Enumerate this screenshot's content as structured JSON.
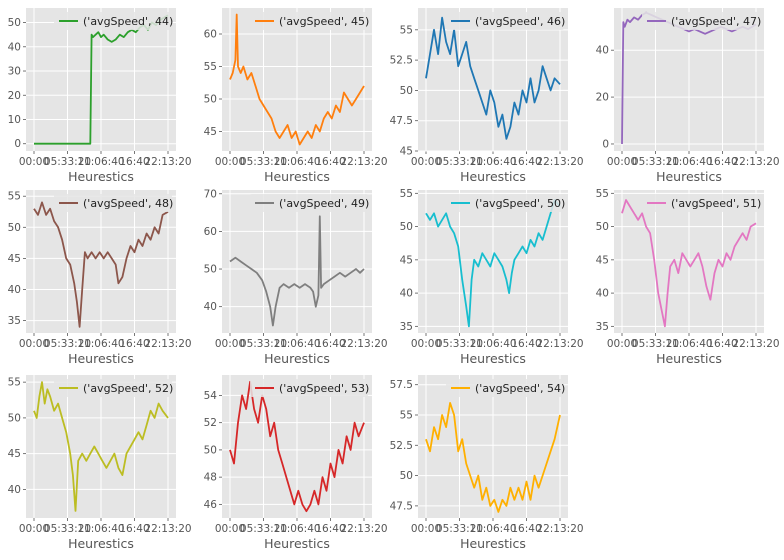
{
  "figure": {
    "grid": true,
    "background": "#e5e5e5",
    "grid_color": "#ffffff",
    "tick_color": "#555555"
  },
  "chart_data": [
    {
      "type": "line",
      "series": [
        {
          "name": "('avgSpeed', 44)"
        }
      ],
      "color": "#2ca02c",
      "xlabel": "Heurestics",
      "legend": "top-right",
      "xticks": [
        "00:00",
        "05:33:20",
        "11:06:40",
        "16:40",
        "22:13:20"
      ],
      "yticks": [
        0,
        10,
        20,
        30,
        40,
        50
      ],
      "ylim": [
        -3,
        56
      ],
      "x": [
        0.0,
        0.08,
        0.16,
        0.24,
        0.32,
        0.4,
        0.42,
        0.43,
        0.44,
        0.46,
        0.48,
        0.5,
        0.52,
        0.55,
        0.58,
        0.61,
        0.64,
        0.67,
        0.7,
        0.73,
        0.76,
        0.79,
        0.82,
        0.85,
        0.88,
        0.91,
        0.94,
        0.97,
        1.0
      ],
      "values": [
        0,
        0,
        0,
        0,
        0,
        0,
        0,
        45,
        44,
        45,
        46,
        44,
        45,
        43,
        42,
        43,
        45,
        44,
        46,
        47,
        46,
        48,
        49,
        47,
        50,
        49,
        51,
        52,
        53
      ]
    },
    {
      "type": "line",
      "series": [
        {
          "name": "('avgSpeed', 45)"
        }
      ],
      "color": "#ff7f0e",
      "xlabel": "Heurestics",
      "legend": "top-right",
      "xticks": [
        "00:00",
        "05:33:20",
        "11:06:40",
        "16:40",
        "22:13:20"
      ],
      "yticks": [
        45,
        50,
        55,
        60
      ],
      "ylim": [
        42,
        64
      ],
      "x": [
        0.0,
        0.02,
        0.04,
        0.05,
        0.06,
        0.08,
        0.1,
        0.13,
        0.16,
        0.19,
        0.22,
        0.25,
        0.28,
        0.31,
        0.34,
        0.37,
        0.4,
        0.43,
        0.46,
        0.49,
        0.52,
        0.55,
        0.58,
        0.61,
        0.64,
        0.67,
        0.7,
        0.73,
        0.76,
        0.79,
        0.82,
        0.85,
        0.88,
        0.91,
        0.94,
        0.97,
        1.0
      ],
      "values": [
        53,
        54,
        56,
        63,
        55,
        54,
        55,
        53,
        54,
        52,
        50,
        49,
        48,
        47,
        45,
        44,
        45,
        46,
        44,
        45,
        43,
        44,
        45,
        44,
        46,
        45,
        47,
        48,
        47,
        49,
        48,
        51,
        50,
        49,
        50,
        51,
        52
      ]
    },
    {
      "type": "line",
      "series": [
        {
          "name": "('avgSpeed', 46)"
        }
      ],
      "color": "#1f77b4",
      "xlabel": "Heurestics",
      "legend": "top-right",
      "xticks": [
        "00:00",
        "05:33:20",
        "11:06:40",
        "16:40",
        "22:13:20"
      ],
      "yticks": [
        45.0,
        47.5,
        50.0,
        52.5,
        55.0
      ],
      "ylim": [
        45,
        56.8
      ],
      "x": [
        0.0,
        0.03,
        0.06,
        0.09,
        0.12,
        0.15,
        0.18,
        0.21,
        0.24,
        0.27,
        0.3,
        0.33,
        0.36,
        0.39,
        0.42,
        0.45,
        0.48,
        0.51,
        0.54,
        0.57,
        0.6,
        0.63,
        0.66,
        0.69,
        0.72,
        0.75,
        0.78,
        0.81,
        0.84,
        0.87,
        0.9,
        0.93,
        0.96,
        1.0
      ],
      "values": [
        51,
        53,
        55,
        53,
        56,
        54,
        53,
        55,
        52,
        53,
        54,
        52,
        51,
        50,
        49,
        48,
        50,
        49,
        47,
        48,
        46,
        47,
        49,
        48,
        50,
        49,
        51,
        49,
        50,
        52,
        51,
        50,
        51,
        50.5
      ]
    },
    {
      "type": "line",
      "series": [
        {
          "name": "('avgSpeed', 47)"
        }
      ],
      "color": "#9467bd",
      "xlabel": "Heurestics",
      "legend": "top-right",
      "xticks": [
        "00:00",
        "05:33:20",
        "11:06:40",
        "16:40",
        "22:13:20"
      ],
      "yticks": [
        0,
        20,
        40
      ],
      "ylim": [
        -3,
        58
      ],
      "x": [
        0.0,
        0.01,
        0.02,
        0.04,
        0.06,
        0.09,
        0.12,
        0.15,
        0.18,
        0.22,
        0.26,
        0.3,
        0.34,
        0.38,
        0.42,
        0.46,
        0.5,
        0.54,
        0.58,
        0.62,
        0.66,
        0.7,
        0.74,
        0.78,
        0.82,
        0.86,
        0.9,
        0.94,
        0.97,
        1.0
      ],
      "values": [
        0,
        52,
        50,
        53,
        52,
        54,
        53,
        55,
        56,
        55,
        54,
        53,
        52,
        51,
        50,
        49,
        48,
        49,
        48,
        47,
        48,
        49,
        50,
        49,
        48,
        49,
        50,
        49,
        50,
        51
      ]
    },
    {
      "type": "line",
      "series": [
        {
          "name": "('avgSpeed', 48)"
        }
      ],
      "color": "#8c564b",
      "xlabel": "Heurestics",
      "legend": "top-right",
      "xticks": [
        "00:00",
        "05:33:20",
        "11:06:40",
        "16:40",
        "22:13:20"
      ],
      "yticks": [
        35,
        40,
        45,
        50,
        55
      ],
      "ylim": [
        33,
        56
      ],
      "x": [
        0.0,
        0.03,
        0.06,
        0.09,
        0.12,
        0.15,
        0.18,
        0.21,
        0.24,
        0.27,
        0.3,
        0.32,
        0.34,
        0.36,
        0.38,
        0.4,
        0.43,
        0.46,
        0.49,
        0.52,
        0.55,
        0.58,
        0.61,
        0.63,
        0.66,
        0.69,
        0.72,
        0.75,
        0.78,
        0.81,
        0.84,
        0.87,
        0.9,
        0.93,
        0.96,
        1.0
      ],
      "values": [
        53,
        52,
        54,
        52,
        53,
        51,
        50,
        48,
        45,
        44,
        41,
        38,
        34,
        40,
        46,
        45,
        46,
        45,
        46,
        45,
        46,
        45,
        44,
        41,
        42,
        45,
        47,
        46,
        48,
        47,
        49,
        48,
        50,
        49,
        52,
        52.5
      ]
    },
    {
      "type": "line",
      "series": [
        {
          "name": "('avgSpeed', 49)"
        }
      ],
      "color": "#7f7f7f",
      "xlabel": "Heurestics",
      "legend": "top-right",
      "xticks": [
        "00:00",
        "05:33:20",
        "11:06:40",
        "16:40",
        "22:13:20"
      ],
      "yticks": [
        40,
        50,
        60,
        70
      ],
      "ylim": [
        33,
        71
      ],
      "x": [
        0.0,
        0.04,
        0.08,
        0.12,
        0.16,
        0.2,
        0.24,
        0.27,
        0.3,
        0.32,
        0.34,
        0.37,
        0.4,
        0.44,
        0.48,
        0.52,
        0.56,
        0.6,
        0.62,
        0.64,
        0.66,
        0.67,
        0.68,
        0.7,
        0.74,
        0.78,
        0.82,
        0.86,
        0.9,
        0.94,
        0.97,
        1.0
      ],
      "values": [
        52,
        53,
        52,
        51,
        50,
        49,
        47,
        44,
        40,
        35,
        40,
        45,
        46,
        45,
        46,
        45,
        46,
        45,
        44,
        40,
        43,
        64,
        45,
        46,
        47,
        48,
        49,
        48,
        49,
        50,
        49,
        50
      ]
    },
    {
      "type": "line",
      "series": [
        {
          "name": "('avgSpeed', 50)"
        }
      ],
      "color": "#17becf",
      "xlabel": "Heurestics",
      "legend": "top-right",
      "xticks": [
        "00:00",
        "05:33:20",
        "11:06:40",
        "16:40",
        "22:13:20"
      ],
      "yticks": [
        35,
        40,
        45,
        50,
        55
      ],
      "ylim": [
        34,
        55.5
      ],
      "x": [
        0.0,
        0.03,
        0.06,
        0.09,
        0.12,
        0.15,
        0.18,
        0.21,
        0.24,
        0.27,
        0.3,
        0.32,
        0.34,
        0.36,
        0.39,
        0.42,
        0.45,
        0.48,
        0.51,
        0.54,
        0.57,
        0.6,
        0.62,
        0.64,
        0.66,
        0.69,
        0.72,
        0.75,
        0.78,
        0.81,
        0.84,
        0.87,
        0.9,
        0.93,
        0.96,
        1.0
      ],
      "values": [
        52,
        51,
        52,
        50,
        51,
        52,
        50,
        49,
        47,
        42,
        38,
        35,
        42,
        45,
        44,
        46,
        45,
        44,
        46,
        45,
        44,
        42,
        40,
        43,
        45,
        46,
        47,
        46,
        48,
        47,
        49,
        48,
        50,
        52,
        54,
        53
      ]
    },
    {
      "type": "line",
      "series": [
        {
          "name": "('avgSpeed', 51)"
        }
      ],
      "color": "#e377c2",
      "xlabel": "Heurestics",
      "legend": "top-right",
      "xticks": [
        "00:00",
        "05:33:20",
        "11:06:40",
        "16:40",
        "22:13:20"
      ],
      "yticks": [
        35,
        40,
        45,
        50,
        55
      ],
      "ylim": [
        34,
        55.5
      ],
      "x": [
        0.0,
        0.03,
        0.06,
        0.09,
        0.12,
        0.15,
        0.18,
        0.21,
        0.24,
        0.27,
        0.3,
        0.32,
        0.34,
        0.36,
        0.39,
        0.42,
        0.45,
        0.48,
        0.51,
        0.54,
        0.57,
        0.6,
        0.63,
        0.66,
        0.69,
        0.72,
        0.75,
        0.78,
        0.81,
        0.84,
        0.87,
        0.9,
        0.93,
        0.96,
        1.0
      ],
      "values": [
        52,
        54,
        53,
        52,
        51,
        52,
        50,
        49,
        45,
        40,
        37,
        35,
        40,
        44,
        45,
        43,
        46,
        45,
        44,
        45,
        46,
        44,
        41,
        39,
        43,
        45,
        44,
        46,
        45,
        47,
        48,
        49,
        48,
        50,
        50.5
      ]
    },
    {
      "type": "line",
      "series": [
        {
          "name": "('avgSpeed', 52)"
        }
      ],
      "color": "#bcbd22",
      "xlabel": "Heurestics",
      "legend": "top-right",
      "xticks": [
        "00:00",
        "05:33:20",
        "11:06:40",
        "16:40",
        "22:13:20"
      ],
      "yticks": [
        40,
        45,
        50,
        55
      ],
      "ylim": [
        36,
        56
      ],
      "x": [
        0.0,
        0.02,
        0.04,
        0.06,
        0.08,
        0.1,
        0.12,
        0.15,
        0.18,
        0.21,
        0.24,
        0.27,
        0.29,
        0.31,
        0.33,
        0.36,
        0.39,
        0.42,
        0.45,
        0.48,
        0.51,
        0.54,
        0.57,
        0.6,
        0.63,
        0.66,
        0.69,
        0.72,
        0.75,
        0.78,
        0.81,
        0.84,
        0.87,
        0.9,
        0.93,
        0.96,
        1.0
      ],
      "values": [
        51,
        50,
        53,
        55,
        52,
        54,
        53,
        51,
        52,
        50,
        48,
        45,
        42,
        37,
        44,
        45,
        44,
        45,
        46,
        45,
        44,
        43,
        44,
        45,
        43,
        42,
        45,
        46,
        47,
        48,
        47,
        49,
        51,
        50,
        52,
        51,
        50
      ]
    },
    {
      "type": "line",
      "series": [
        {
          "name": "('avgSpeed', 53)"
        }
      ],
      "color": "#d62728",
      "xlabel": "Heurestics",
      "legend": "top-right",
      "xticks": [
        "00:00",
        "05:33:20",
        "11:06:40",
        "16:40",
        "22:13:20"
      ],
      "yticks": [
        46,
        48,
        50,
        52,
        54
      ],
      "ylim": [
        45,
        55.5
      ],
      "x": [
        0.0,
        0.03,
        0.06,
        0.09,
        0.12,
        0.15,
        0.18,
        0.21,
        0.24,
        0.27,
        0.3,
        0.33,
        0.36,
        0.39,
        0.42,
        0.45,
        0.48,
        0.51,
        0.54,
        0.57,
        0.6,
        0.63,
        0.66,
        0.69,
        0.72,
        0.75,
        0.78,
        0.81,
        0.84,
        0.87,
        0.9,
        0.93,
        0.96,
        1.0
      ],
      "values": [
        50,
        49,
        52,
        54,
        53,
        55,
        53,
        52,
        54,
        53,
        51,
        52,
        50,
        49,
        48,
        47,
        46,
        47,
        46,
        45.5,
        46,
        47,
        46,
        48,
        47,
        49,
        48,
        50,
        49,
        51,
        50,
        52,
        51,
        52
      ]
    },
    {
      "type": "line",
      "series": [
        {
          "name": "('avgSpeed', 54)"
        }
      ],
      "color": "#ffb000",
      "xlabel": "Heurestics",
      "legend": "top-right",
      "xticks": [
        "00:00",
        "05:33:20",
        "11:06:40",
        "16:40",
        "22:13:20"
      ],
      "yticks": [
        47.5,
        50.0,
        52.5,
        55.0,
        57.5
      ],
      "ylim": [
        46.5,
        58.3
      ],
      "x": [
        0.0,
        0.03,
        0.06,
        0.09,
        0.12,
        0.15,
        0.18,
        0.21,
        0.24,
        0.27,
        0.3,
        0.33,
        0.36,
        0.39,
        0.42,
        0.45,
        0.48,
        0.51,
        0.54,
        0.57,
        0.6,
        0.63,
        0.66,
        0.69,
        0.72,
        0.75,
        0.78,
        0.81,
        0.84,
        0.87,
        0.9,
        0.93,
        0.96,
        1.0
      ],
      "values": [
        53,
        52,
        54,
        53,
        55,
        54,
        56,
        55,
        52,
        53,
        51,
        50,
        49,
        50,
        48,
        49,
        47.5,
        48,
        47,
        48,
        47.5,
        49,
        48,
        49,
        48,
        49.5,
        48,
        50,
        49,
        50,
        51,
        52,
        53,
        55
      ]
    }
  ]
}
